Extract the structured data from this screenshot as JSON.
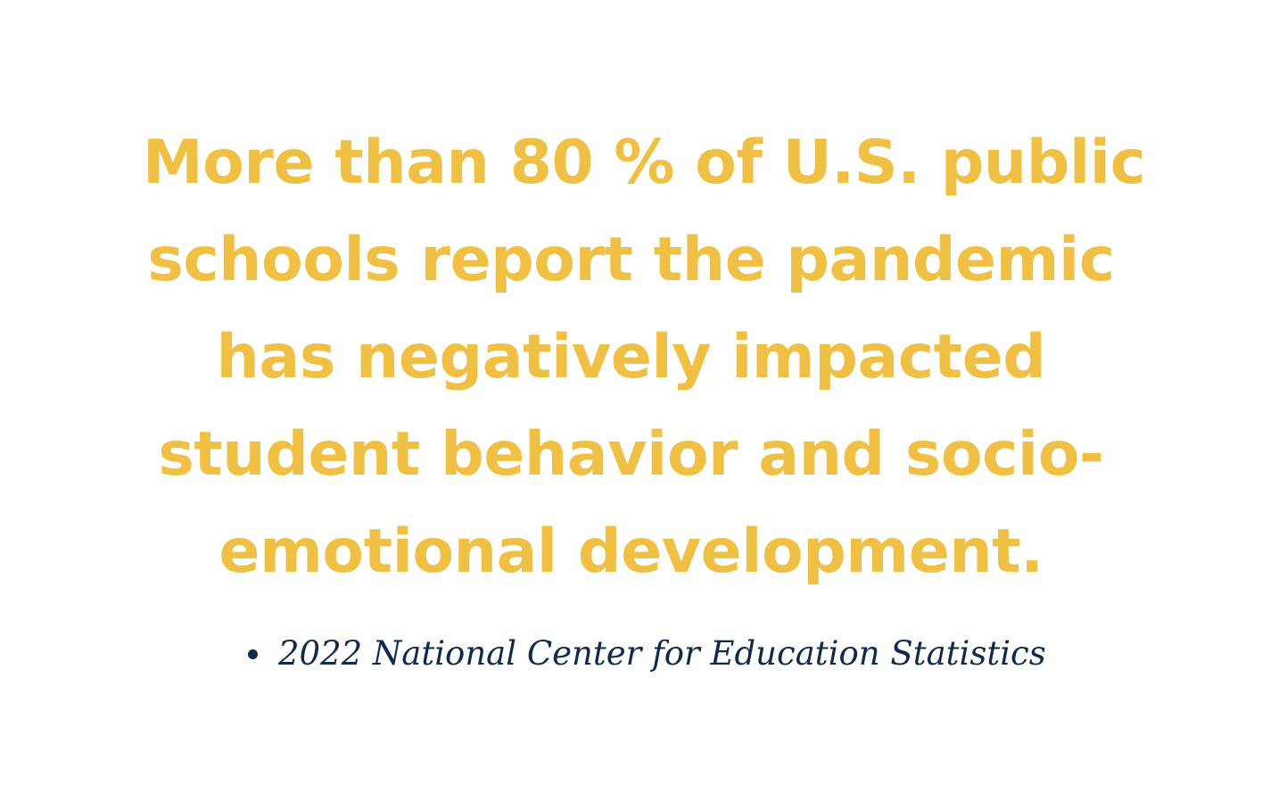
{
  "quote": {
    "lines": [
      "More than 80 % of U.S. public",
      "schools report the pandemic",
      "has negatively impacted",
      "student behavior and socio-",
      "emotional development."
    ],
    "color": "#f0c044"
  },
  "source": {
    "items": [
      "2022 National Center for Education Statistics"
    ],
    "color": "#0f2a4a"
  }
}
